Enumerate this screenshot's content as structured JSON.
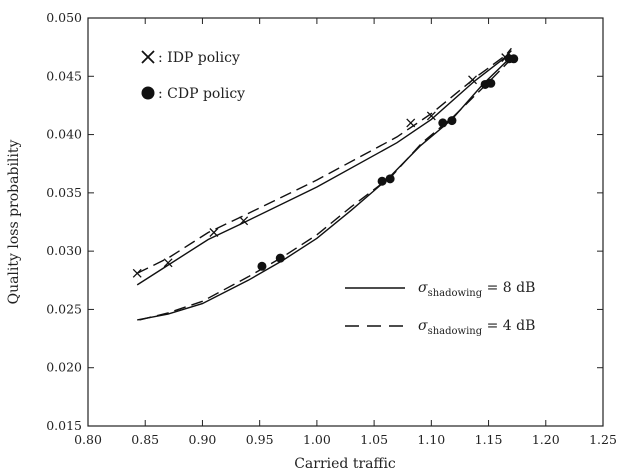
{
  "chart_data": {
    "type": "line",
    "title": "",
    "xlabel": "Carried traffic",
    "ylabel": "Quality loss probability",
    "xlim": [
      0.8,
      1.25
    ],
    "ylim": [
      0.015,
      0.05
    ],
    "xticks": [
      "0.80",
      "0.85",
      "0.90",
      "0.95",
      "1.00",
      "1.05",
      "1.10",
      "1.15",
      "1.20",
      "1.25"
    ],
    "yticks": [
      "0.015",
      "0.020",
      "0.025",
      "0.030",
      "0.035",
      "0.040",
      "0.045",
      "0.050"
    ],
    "grid": false,
    "marker_legend": [
      {
        "marker": "x",
        "label": ": IDP policy"
      },
      {
        "marker": "dot",
        "label": ": CDP policy"
      }
    ],
    "line_legend": [
      {
        "style": "solid",
        "sigma": "σ",
        "sub": "shadowing",
        "rest": " = 8 dB"
      },
      {
        "style": "dashed",
        "sigma": "σ",
        "sub": "shadowing",
        "rest": " = 4 dB"
      }
    ],
    "series": [
      {
        "policy": "IDP",
        "shadowing_dB": 8,
        "style": "solid",
        "marker": "x",
        "points": [
          [
            0.843,
            0.0271
          ],
          [
            0.87,
            0.0288
          ],
          [
            0.905,
            0.031
          ],
          [
            0.935,
            0.0324
          ],
          [
            1.0,
            0.0355
          ],
          [
            1.07,
            0.0393
          ],
          [
            1.1,
            0.0413
          ],
          [
            1.138,
            0.0446
          ],
          [
            1.163,
            0.0465
          ],
          [
            1.17,
            0.0472
          ]
        ],
        "markers": [
          [
            0.87,
            0.029
          ],
          [
            0.91,
            0.0316
          ],
          [
            0.936,
            0.0326
          ],
          [
            1.082,
            0.041
          ],
          [
            1.1,
            0.0416
          ],
          [
            1.136,
            0.0447
          ],
          [
            1.165,
            0.0466
          ]
        ]
      },
      {
        "policy": "IDP",
        "shadowing_dB": 4,
        "style": "dashed",
        "marker": "x",
        "points": [
          [
            0.843,
            0.0281
          ],
          [
            0.87,
            0.0294
          ],
          [
            0.905,
            0.0316
          ],
          [
            0.935,
            0.033
          ],
          [
            1.0,
            0.0361
          ],
          [
            1.07,
            0.0398
          ],
          [
            1.1,
            0.0418
          ],
          [
            1.14,
            0.045
          ],
          [
            1.165,
            0.0468
          ],
          [
            1.17,
            0.0474
          ]
        ],
        "markers": [
          [
            0.843,
            0.0281
          ]
        ]
      },
      {
        "policy": "CDP",
        "shadowing_dB": 8,
        "style": "solid",
        "marker": "dot",
        "points": [
          [
            0.843,
            0.0241
          ],
          [
            0.87,
            0.0246
          ],
          [
            0.9,
            0.0255
          ],
          [
            0.94,
            0.0275
          ],
          [
            0.97,
            0.0292
          ],
          [
            1.0,
            0.0311
          ],
          [
            1.03,
            0.0335
          ],
          [
            1.062,
            0.0362
          ],
          [
            1.09,
            0.039
          ],
          [
            1.118,
            0.0413
          ],
          [
            1.145,
            0.0443
          ],
          [
            1.168,
            0.0465
          ]
        ],
        "markers": [
          [
            0.952,
            0.0287
          ],
          [
            1.057,
            0.036
          ],
          [
            1.11,
            0.041
          ],
          [
            1.147,
            0.0443
          ],
          [
            1.168,
            0.0465
          ]
        ]
      },
      {
        "policy": "CDP",
        "shadowing_dB": 4,
        "style": "dashed",
        "marker": "dot",
        "points": [
          [
            0.845,
            0.0241
          ],
          [
            0.87,
            0.0247
          ],
          [
            0.9,
            0.0257
          ],
          [
            0.94,
            0.0278
          ],
          [
            0.97,
            0.0295
          ],
          [
            1.0,
            0.0314
          ],
          [
            1.03,
            0.0338
          ],
          [
            1.065,
            0.0364
          ],
          [
            1.092,
            0.0393
          ],
          [
            1.12,
            0.0416
          ],
          [
            1.15,
            0.0445
          ],
          [
            1.172,
            0.0467
          ]
        ],
        "markers": [
          [
            0.968,
            0.0294
          ],
          [
            1.064,
            0.0362
          ],
          [
            1.118,
            0.0412
          ],
          [
            1.152,
            0.0444
          ],
          [
            1.172,
            0.0465
          ]
        ]
      }
    ]
  }
}
